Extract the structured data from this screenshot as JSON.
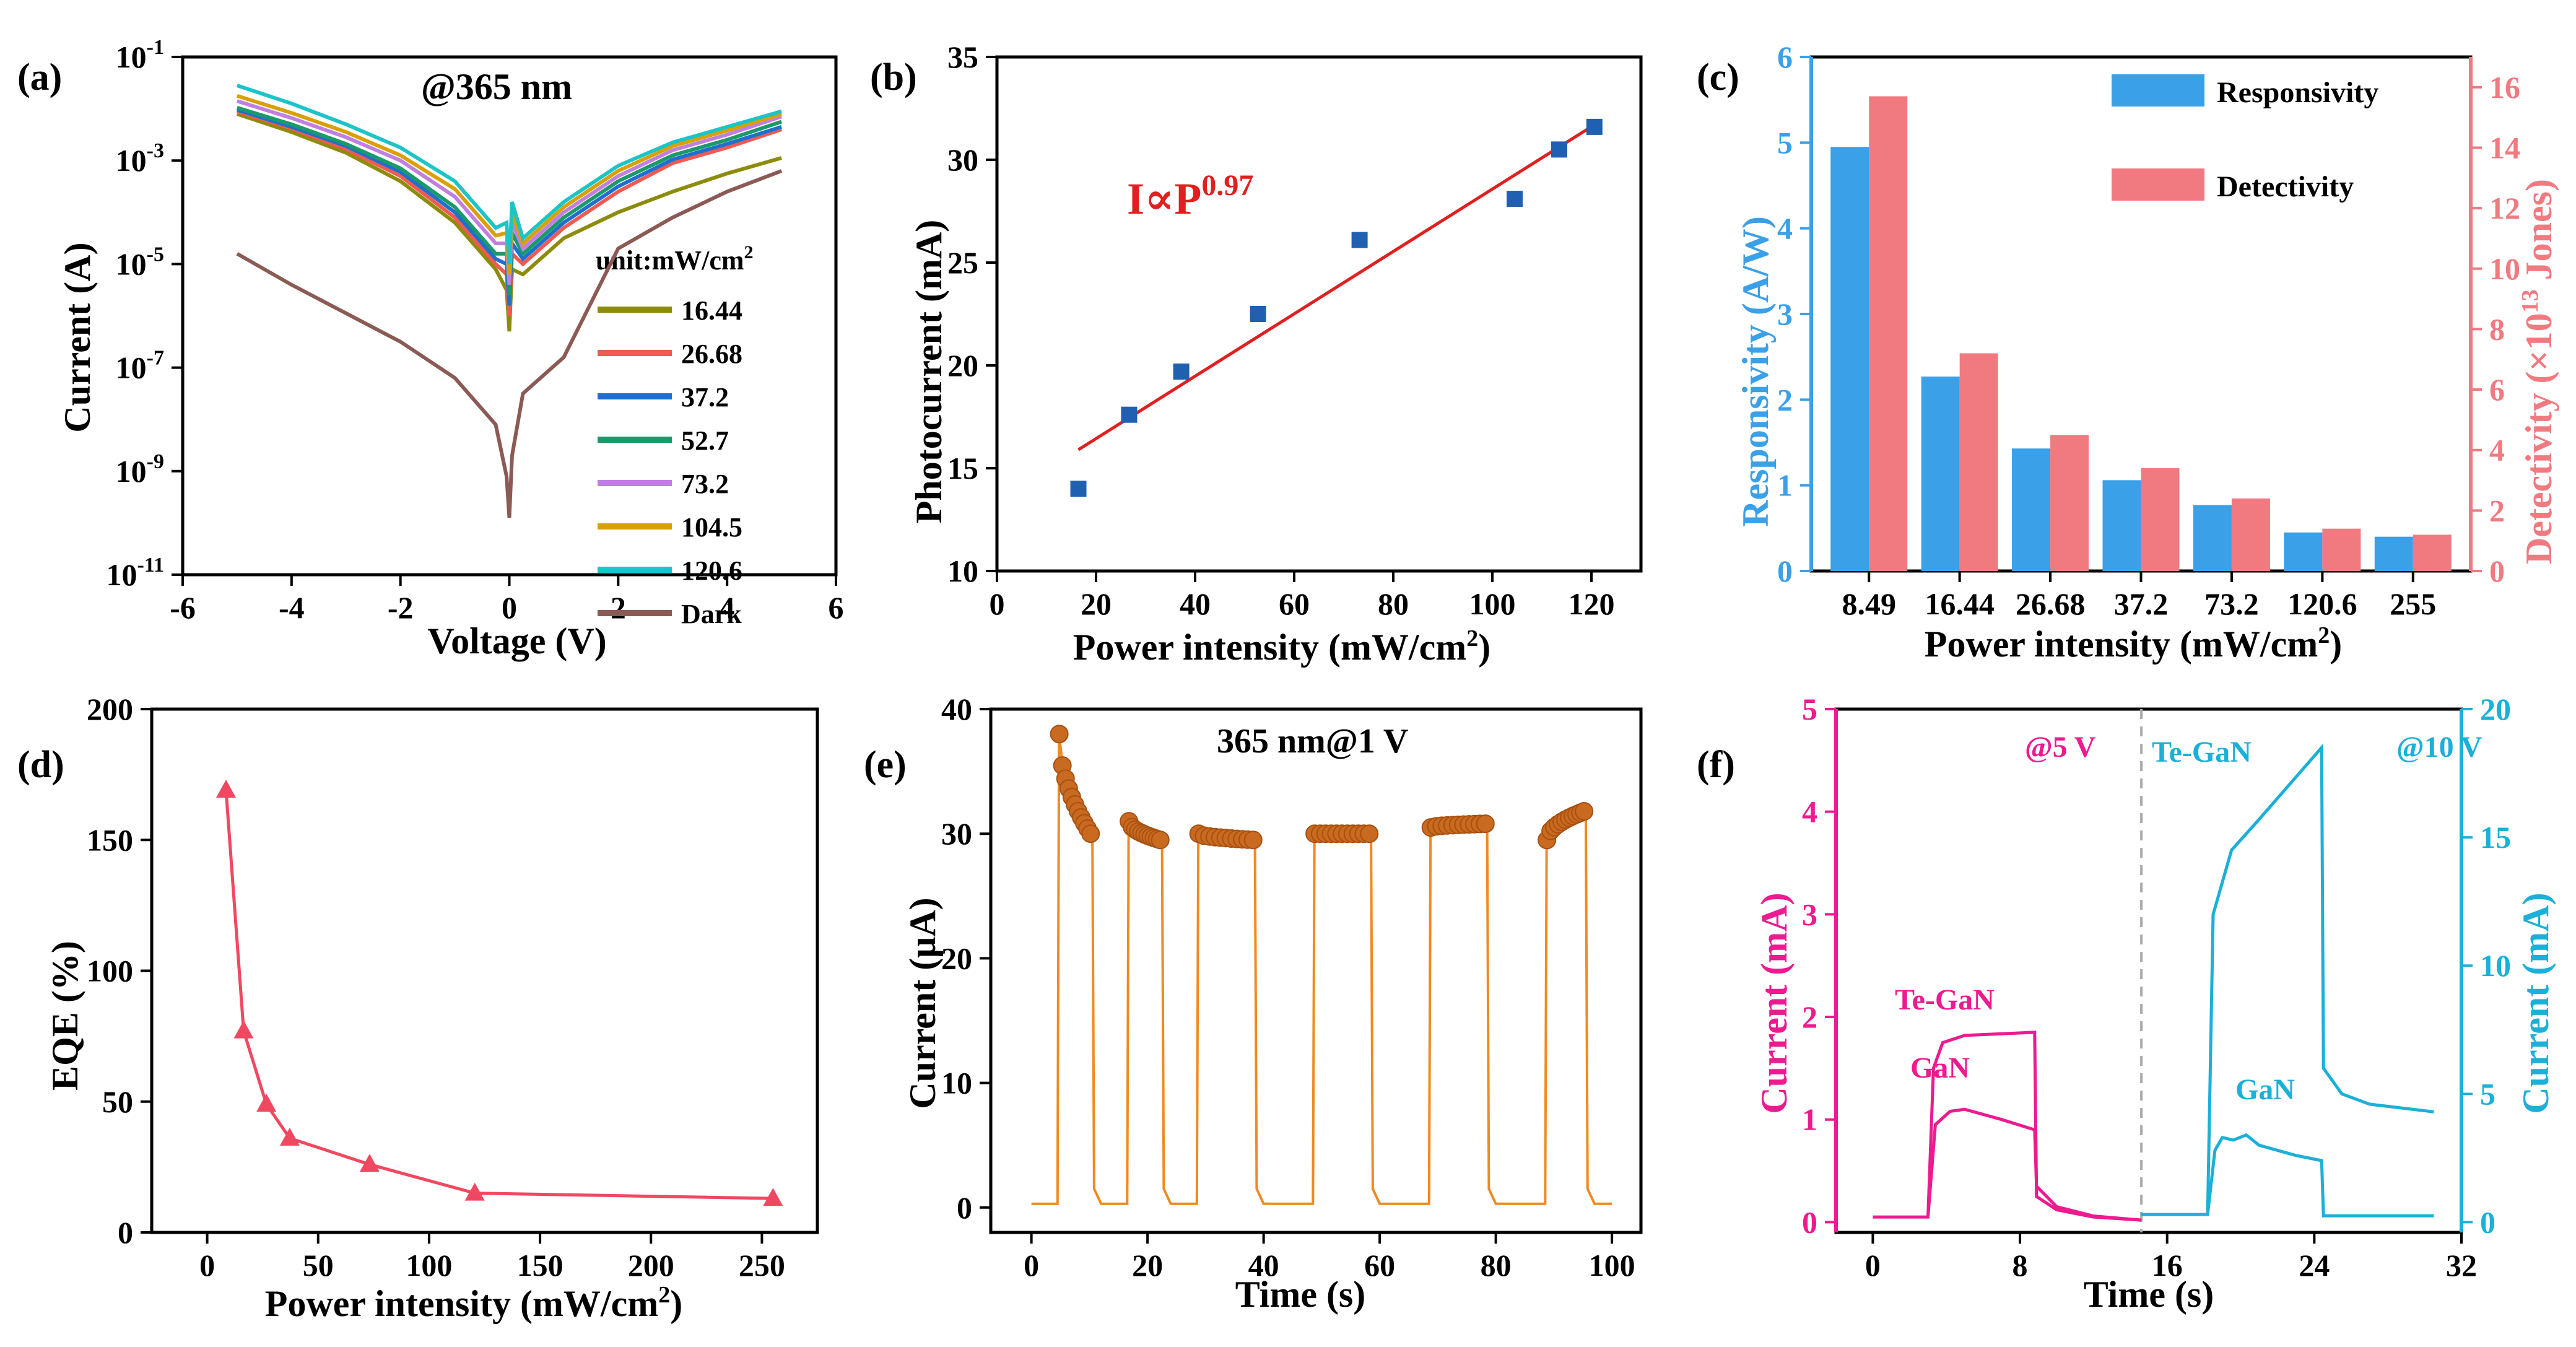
{
  "chart_data": [
    {
      "panel": "(a)",
      "type": "line",
      "title": "@365 nm",
      "xlabel": "Voltage (V)",
      "ylabel": "Current (A)",
      "xlim": [
        -6,
        6
      ],
      "ylim_log10": [
        -11,
        -1
      ],
      "yscale": "log",
      "xticks": [
        "-6",
        "-4",
        "-2",
        "0",
        "2",
        "4",
        "6"
      ],
      "yticks": [
        {
          "base": "10",
          "exp": "-1"
        },
        {
          "base": "10",
          "exp": "-3"
        },
        {
          "base": "10",
          "exp": "-5"
        },
        {
          "base": "10",
          "exp": "-7"
        },
        {
          "base": "10",
          "exp": "-9"
        },
        {
          "base": "10",
          "exp": "-11"
        }
      ],
      "legend_title": "unit:mW/cm",
      "legend_title_sup": "2",
      "series": [
        {
          "name": "16.44",
          "color": "#8c8c0a",
          "log_neg": [
            -2.1,
            -2.45,
            -2.85,
            -3.4,
            -4.2
          ],
          "log_pos": [
            -4.5,
            -4.0,
            -3.6,
            -3.25,
            -2.95
          ],
          "dip": -6.3
        },
        {
          "name": "26.68",
          "color": "#f05a50",
          "log_neg": [
            -2.05,
            -2.38,
            -2.78,
            -3.3,
            -4.1
          ],
          "log_pos": [
            -4.3,
            -3.6,
            -3.05,
            -2.75,
            -2.4
          ],
          "dip": -6.0
        },
        {
          "name": "37.2",
          "color": "#1f6fd1",
          "log_neg": [
            -2.02,
            -2.35,
            -2.72,
            -3.22,
            -4.0
          ],
          "log_pos": [
            -4.2,
            -3.5,
            -2.98,
            -2.68,
            -2.35
          ],
          "dip": -5.8
        },
        {
          "name": "52.7",
          "color": "#1a9a6a",
          "log_neg": [
            -1.98,
            -2.3,
            -2.68,
            -3.15,
            -3.9
          ],
          "log_pos": [
            -4.1,
            -3.4,
            -2.9,
            -2.6,
            -2.25
          ],
          "dip": -5.6
        },
        {
          "name": "73.2",
          "color": "#c080e0",
          "log_neg": [
            -1.85,
            -2.18,
            -2.55,
            -3.0,
            -3.7
          ],
          "log_pos": [
            -4.0,
            -3.3,
            -2.8,
            -2.5,
            -2.15
          ],
          "dip": -5.4
        },
        {
          "name": "104.5",
          "color": "#d9a000",
          "log_neg": [
            -1.75,
            -2.08,
            -2.45,
            -2.9,
            -3.55
          ],
          "log_pos": [
            -3.9,
            -3.2,
            -2.72,
            -2.42,
            -2.1
          ],
          "dip": -5.2
        },
        {
          "name": "120.6",
          "color": "#1cc4c8",
          "log_neg": [
            -1.55,
            -1.9,
            -2.3,
            -2.75,
            -3.4
          ],
          "log_pos": [
            -3.8,
            -3.1,
            -2.65,
            -2.35,
            -2.05
          ],
          "dip": -5.0
        },
        {
          "name": "Dark",
          "color": "#8b5a55",
          "log_neg": [
            -4.8,
            -5.4,
            -5.95,
            -6.5,
            -7.2
          ],
          "log_pos": [
            -6.8,
            -4.7,
            -4.1,
            -3.6,
            -3.2
          ],
          "dip": -9.9
        }
      ]
    },
    {
      "panel": "(b)",
      "type": "scatter",
      "xlabel": "Power intensity (mW/cm",
      "xlabel_sup": "2",
      "xlabel_end": ")",
      "ylabel": "Photocurrent (mA)",
      "xlim": [
        0,
        130
      ],
      "ylim": [
        10,
        35
      ],
      "xticks": [
        "0",
        "20",
        "40",
        "60",
        "80",
        "100",
        "120"
      ],
      "yticks": [
        "10",
        "15",
        "20",
        "25",
        "30",
        "35"
      ],
      "annotation": "I∝P",
      "annotation_sup": "0.97",
      "points": [
        [
          16.44,
          14.0
        ],
        [
          26.68,
          17.6
        ],
        [
          37.2,
          19.7
        ],
        [
          52.7,
          22.5
        ],
        [
          73.2,
          26.1
        ],
        [
          104.5,
          28.1
        ],
        [
          113.5,
          30.5
        ],
        [
          120.6,
          31.6
        ]
      ],
      "fit": [
        [
          16.44,
          15.9
        ],
        [
          120.6,
          31.7
        ]
      ],
      "point_color": "#2060b0",
      "fit_color": "#e02020"
    },
    {
      "panel": "(c)",
      "type": "bar",
      "xlabel": "Power intensity (mW/cm",
      "xlabel_sup": "2",
      "xlabel_end": ")",
      "ylabel_left": "Responsivity (A/W)",
      "ylabel_right_a": "Detectivity (×10",
      "ylabel_right_sup": "13",
      "ylabel_right_b": " Jones)",
      "ylim_left": [
        0,
        6
      ],
      "ylim_right": [
        0,
        17
      ],
      "yticks_left": [
        "0",
        "1",
        "2",
        "3",
        "4",
        "5",
        "6"
      ],
      "yticks_right": [
        "0",
        "2",
        "4",
        "6",
        "8",
        "10",
        "12",
        "14",
        "16"
      ],
      "categories": [
        "8.49",
        "16.44",
        "26.68",
        "37.2",
        "73.2",
        "120.6",
        "255"
      ],
      "series": [
        {
          "name": "Responsivity",
          "axis": "left",
          "values": [
            4.95,
            2.27,
            1.43,
            1.06,
            0.77,
            0.45,
            0.4
          ],
          "color": "#3aa0e8"
        },
        {
          "name": "Detectivity",
          "axis": "right",
          "values": [
            15.7,
            7.2,
            4.5,
            3.4,
            2.4,
            1.4,
            1.2
          ],
          "color": "#f07a80"
        }
      ],
      "color_left": "#3aa0e8",
      "color_right": "#f07a80"
    },
    {
      "panel": "(d)",
      "type": "line",
      "xlabel": "Power intensity (mW/cm",
      "xlabel_sup": "2",
      "xlabel_end": ")",
      "ylabel": "EQE (%)",
      "xlim": [
        -25,
        275
      ],
      "ylim": [
        0,
        200
      ],
      "xticks": [
        "0",
        "50",
        "100",
        "150",
        "200",
        "250"
      ],
      "yticks": [
        "0",
        "50",
        "100",
        "150",
        "200"
      ],
      "x": [
        8.49,
        16.44,
        26.68,
        37.2,
        73.2,
        120.6,
        255
      ],
      "values": [
        169,
        77,
        49,
        36,
        26,
        15,
        13
      ],
      "color": "#f04860"
    },
    {
      "panel": "(e)",
      "type": "line",
      "title": "365 nm@1 V",
      "xlabel": "Time (s)",
      "ylabel": "Current (μA)",
      "xlim": [
        -7,
        105
      ],
      "ylim": [
        -2,
        40
      ],
      "xticks": [
        "0",
        "20",
        "40",
        "60",
        "80",
        "100"
      ],
      "yticks": [
        "0",
        "10",
        "20",
        "30",
        "40"
      ],
      "pulses": [
        [
          4.5,
          10.5,
          38,
          30
        ],
        [
          16.5,
          22.5,
          31,
          29.5
        ],
        [
          28.5,
          38.5,
          30,
          29.5
        ],
        [
          48.5,
          58.5,
          30,
          30
        ],
        [
          68.5,
          78.5,
          30.5,
          30.8
        ],
        [
          88.5,
          95.5,
          29.5,
          31.8
        ]
      ],
      "baseline": 0.3,
      "color": "#f08a20",
      "marker_color": "#c86a20"
    },
    {
      "panel": "(f)",
      "type": "line",
      "xlabel": "Time (s)",
      "ylabel_left": "Current (mA)",
      "ylabel_right": "Current (mA)",
      "xlim": [
        -2,
        32
      ],
      "ylim_left": [
        -0.1,
        5
      ],
      "ylim_right": [
        -0.4,
        20
      ],
      "xticks": [
        "0",
        "8",
        "16",
        "24",
        "32"
      ],
      "yticks_left": [
        "0",
        "1",
        "2",
        "3",
        "4",
        "5"
      ],
      "yticks_right": [
        "0",
        "5",
        "10",
        "15",
        "20"
      ],
      "label_left_top": "@5 V",
      "label_right_top": "@10 V",
      "divider_x": 14.6,
      "labels": {
        "te_left": "Te-GaN",
        "gan_left": "GaN",
        "te_right": "Te-GaN",
        "gan_right": "GaN"
      },
      "color_left": "#ee1a8f",
      "color_right": "#1ab0d8"
    }
  ]
}
